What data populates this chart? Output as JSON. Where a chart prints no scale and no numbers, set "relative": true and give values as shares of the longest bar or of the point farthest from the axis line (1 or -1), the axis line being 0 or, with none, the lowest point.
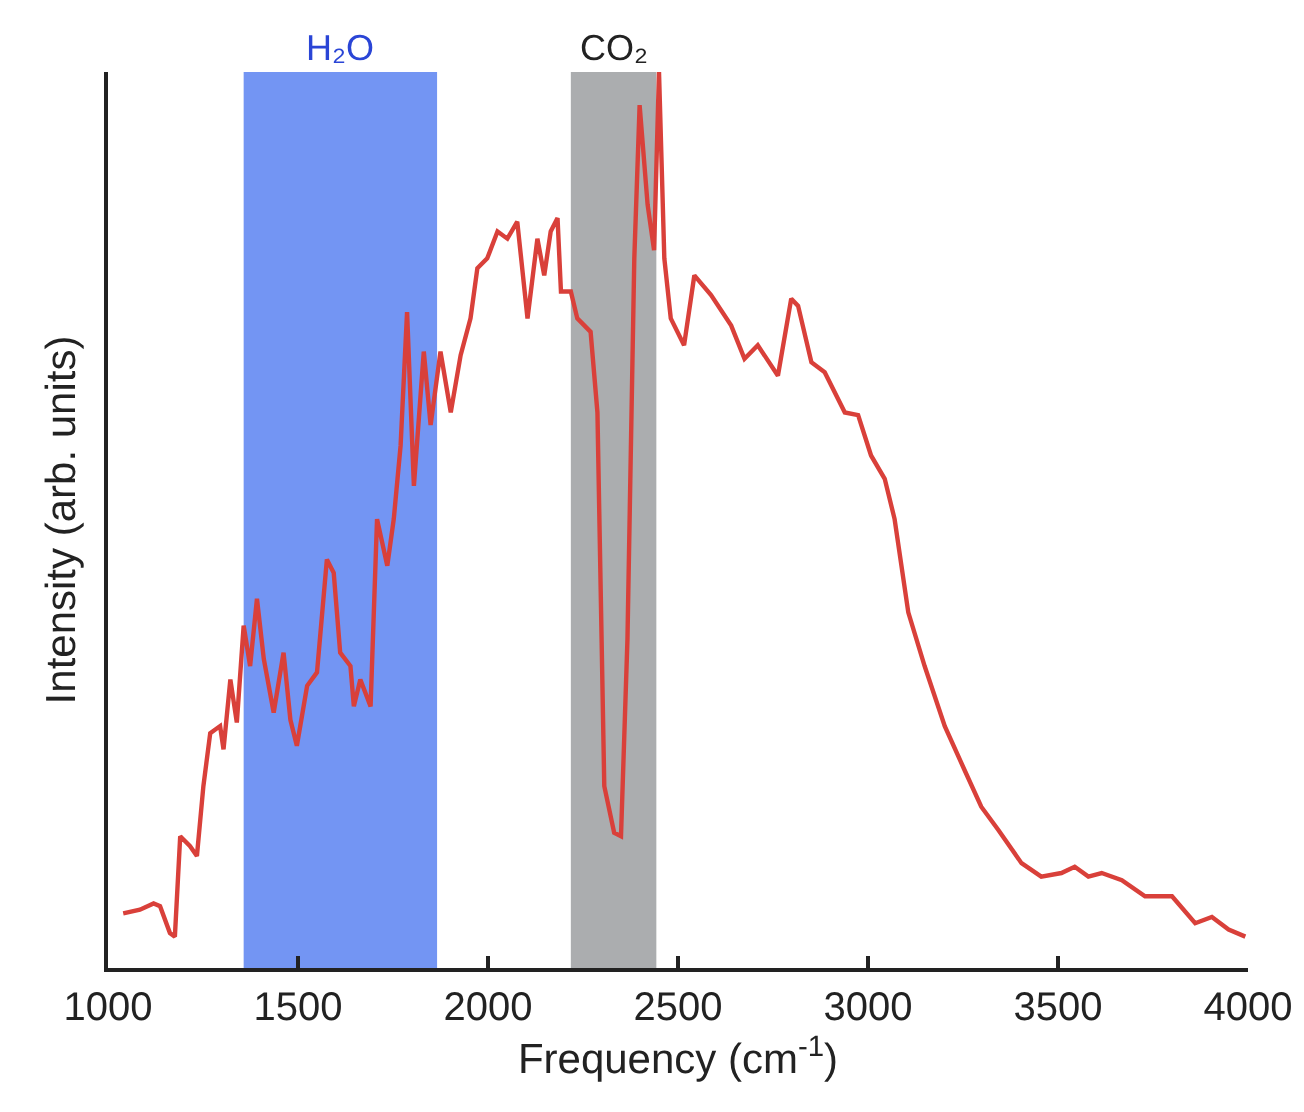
{
  "chart_data": {
    "type": "line",
    "relative": true,
    "xlabel": "Frequency (cm$^{-1}$)",
    "ylabel": "Intensity (arb. units)",
    "xlim": [
      1000,
      4000
    ],
    "xticks": [
      1000,
      1500,
      2000,
      2500,
      3000,
      3500,
      4000
    ],
    "tick_labels": "x",
    "grid": false,
    "marker": "none",
    "line_style": "solid",
    "bands": [
      {
        "axis": "x",
        "from": 1357,
        "to": 1866,
        "label": "H₂O",
        "color": "#6b8ff2"
      },
      {
        "axis": "x",
        "from": 2218,
        "to": 2443,
        "label": "CO₂",
        "color": "#a7a9ab"
      }
    ],
    "series": [
      {
        "color": "#d9403a",
        "x": [
          1040,
          1084,
          1120,
          1137,
          1163,
          1176,
          1190,
          1216,
          1234,
          1251,
          1269,
          1295,
          1304,
          1322,
          1339,
          1357,
          1374,
          1392,
          1410,
          1436,
          1462,
          1480,
          1497,
          1524,
          1550,
          1576,
          1594,
          1611,
          1638,
          1647,
          1664,
          1691,
          1708,
          1735,
          1752,
          1770,
          1787,
          1805,
          1831,
          1849,
          1875,
          1902,
          1928,
          1954,
          1972,
          1998,
          2025,
          2051,
          2077,
          2104,
          2130,
          2148,
          2165,
          2183,
          2192,
          2218,
          2235,
          2270,
          2288,
          2306,
          2332,
          2350,
          2367,
          2385,
          2399,
          2420,
          2437,
          2450,
          2464,
          2481,
          2516,
          2543,
          2587,
          2640,
          2675,
          2710,
          2763,
          2798,
          2816,
          2851,
          2886,
          2939,
          2974,
          3008,
          3044,
          3070,
          3106,
          3149,
          3202,
          3254,
          3298,
          3343,
          3404,
          3456,
          3509,
          3544,
          3580,
          3615,
          3668,
          3729,
          3800,
          3861,
          3905,
          3949,
          3993
        ],
        "values": [
          0.061,
          0.065,
          0.072,
          0.069,
          0.039,
          0.035,
          0.147,
          0.136,
          0.125,
          0.203,
          0.262,
          0.27,
          0.244,
          0.322,
          0.274,
          0.382,
          0.337,
          0.412,
          0.345,
          0.285,
          0.352,
          0.277,
          0.248,
          0.315,
          0.33,
          0.456,
          0.441,
          0.352,
          0.337,
          0.292,
          0.322,
          0.292,
          0.501,
          0.449,
          0.501,
          0.583,
          0.732,
          0.538,
          0.688,
          0.606,
          0.688,
          0.62,
          0.684,
          0.725,
          0.781,
          0.792,
          0.822,
          0.814,
          0.833,
          0.725,
          0.814,
          0.773,
          0.822,
          0.837,
          0.755,
          0.755,
          0.725,
          0.71,
          0.62,
          0.203,
          0.151,
          0.147,
          0.367,
          0.792,
          0.963,
          0.852,
          0.801,
          1.0,
          0.792,
          0.725,
          0.695,
          0.773,
          0.751,
          0.717,
          0.68,
          0.695,
          0.661,
          0.747,
          0.739,
          0.676,
          0.665,
          0.62,
          0.617,
          0.572,
          0.546,
          0.501,
          0.397,
          0.337,
          0.27,
          0.221,
          0.18,
          0.154,
          0.117,
          0.102,
          0.106,
          0.113,
          0.102,
          0.106,
          0.098,
          0.08,
          0.08,
          0.05,
          0.057,
          0.043,
          0.035
        ]
      }
    ]
  }
}
